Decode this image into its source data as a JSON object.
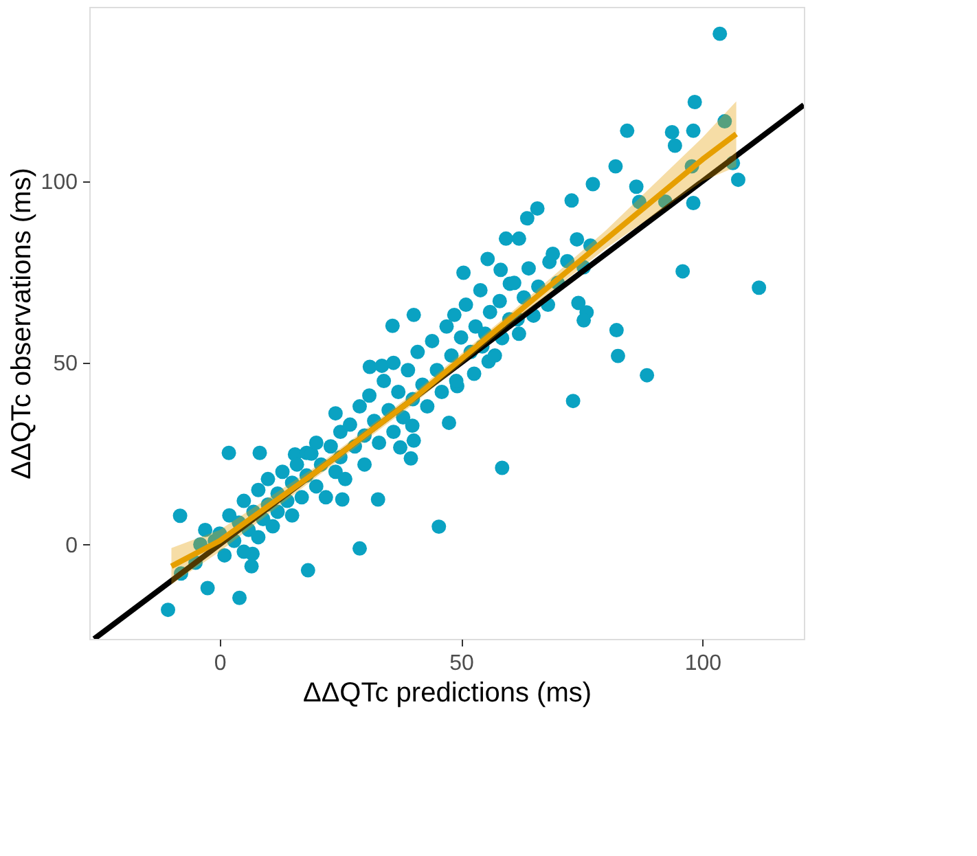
{
  "chart_data": {
    "type": "scatter",
    "xlabel": "ΔΔQTc predictions (ms)",
    "ylabel": "ΔΔQTc observations (ms)",
    "xlim": [
      -27,
      121
    ],
    "ylim": [
      -26,
      148
    ],
    "xticks": [
      0,
      50,
      100
    ],
    "yticks": [
      0,
      50,
      100
    ],
    "grid": false,
    "series": [
      {
        "color": "#0aa2c2",
        "marker": "circle",
        "x": [
          103.6,
          98.4,
          84.4,
          93.7,
          94.3,
          98.1,
          104.6,
          106.3,
          107.4,
          77.3,
          82,
          72.9,
          86.3,
          86.9,
          92.3,
          97.8,
          98.1,
          111.7,
          95.9,
          88.5,
          76,
          82.5,
          82.2,
          74.3,
          75.4,
          73.2,
          76.8,
          75.4,
          65.8,
          59.3,
          58.2,
          58.5,
          45.4,
          40.2,
          47.5,
          49.2,
          31.1,
          24,
          15.6,
          18,
          1.9,
          8.3,
          -8.2,
          -10.7,
          4.1,
          -2.5,
          29,
          18.3,
          6.6,
          6.8,
          39.6,
          37.4,
          25.4,
          32.8,
          39.9,
          48.6,
          40.2,
          33.6,
          35.8,
          54.4,
          50.5,
          55.5,
          60.1,
          62,
          63.7,
          68.3,
          61.7,
          55.7,
          52.7,
          58.5,
          0,
          1,
          2,
          3,
          4,
          5,
          5,
          6,
          7,
          8,
          8,
          9,
          10,
          10,
          11,
          12,
          12,
          13,
          14,
          15,
          15,
          16,
          17,
          18,
          19,
          20,
          20,
          21,
          22,
          23,
          24,
          25,
          25,
          26,
          27,
          28,
          29,
          30,
          30,
          31,
          32,
          33,
          34,
          35,
          36,
          36,
          37,
          38,
          39,
          40,
          41,
          42,
          43,
          44,
          45,
          46,
          47,
          48,
          49,
          50,
          51,
          52,
          53,
          54,
          55,
          56,
          57,
          58,
          60,
          61,
          62,
          63,
          64,
          65,
          66,
          68,
          69,
          70,
          72,
          74,
          -5,
          -3,
          -8,
          -4,
          -1
        ],
        "values": [
          140.6,
          121.8,
          113.9,
          113.5,
          109.8,
          113.9,
          116.5,
          105,
          100.4,
          99.2,
          104.1,
          94.7,
          98.5,
          94.3,
          94.4,
          104.1,
          94,
          70.7,
          75.2,
          46.6,
          63.9,
          51.9,
          59,
          66.5,
          61.7,
          39.5,
          82.3,
          76.3,
          92.5,
          84.2,
          75.6,
          21.1,
          4.9,
          28.6,
          33.5,
          43.6,
          48.9,
          36.1,
          24.8,
          25.2,
          25.2,
          25.2,
          7.9,
          -18,
          -14.7,
          -12,
          -1.1,
          -7.1,
          -6,
          -2.6,
          23.7,
          26.7,
          12.4,
          12.4,
          32.7,
          63.2,
          63.2,
          49.2,
          60.2,
          54.5,
          74.8,
          78.6,
          71.8,
          84.2,
          89.8,
          77.8,
          62,
          50.4,
          47,
          56.8,
          3,
          -3,
          8,
          1,
          6,
          12,
          -2,
          4,
          9,
          15,
          2,
          7,
          11,
          18,
          5,
          14,
          9,
          20,
          12,
          8,
          17,
          22,
          13,
          19,
          25,
          16,
          28,
          22,
          13,
          27,
          20,
          31,
          24,
          18,
          33,
          27,
          38,
          30,
          22,
          41,
          34,
          28,
          45,
          37,
          31,
          50,
          42,
          35,
          48,
          40,
          53,
          44,
          38,
          56,
          48,
          42,
          60,
          52,
          45,
          57,
          66,
          53,
          60,
          70,
          58,
          64,
          52,
          67,
          62,
          72,
          58,
          68,
          76,
          63,
          71,
          66,
          80,
          72,
          78,
          84,
          -5,
          4,
          -8,
          0,
          1
        ]
      },
      {
        "type": "line",
        "color": "#000000",
        "x": [
          -26,
          121
        ],
        "values": [
          -26,
          121
        ]
      },
      {
        "type": "line",
        "color": "#e69f00",
        "x": [
          -10,
          0,
          20,
          40,
          60,
          80,
          100,
          107
        ],
        "values": [
          -6,
          1,
          20,
          40,
          62,
          84,
          106,
          113
        ],
        "lower": [
          -11,
          -2,
          18.5,
          38.5,
          60.5,
          81.5,
          100,
          104
        ],
        "upper": [
          -1,
          4,
          21.5,
          41.5,
          63.5,
          86.5,
          112,
          122
        ]
      }
    ]
  }
}
